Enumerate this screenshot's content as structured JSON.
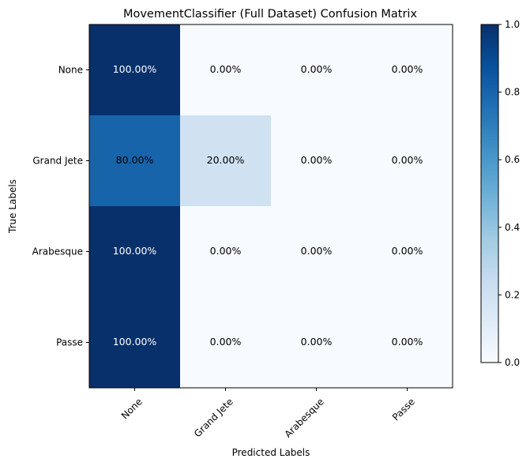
{
  "chart_data": {
    "type": "heatmap",
    "title": "MovementClassifier (Full Dataset) Confusion Matrix",
    "xlabel": "Predicted Labels",
    "ylabel": "True Labels",
    "x_categories": [
      "None",
      "Grand Jete",
      "Arabesque",
      "Passe"
    ],
    "y_categories": [
      "None",
      "Grand Jete",
      "Arabesque",
      "Passe"
    ],
    "values": [
      [
        1.0,
        0.0,
        0.0,
        0.0
      ],
      [
        0.8,
        0.2,
        0.0,
        0.0
      ],
      [
        1.0,
        0.0,
        0.0,
        0.0
      ],
      [
        1.0,
        0.0,
        0.0,
        0.0
      ]
    ],
    "cell_labels": [
      [
        "100.00%",
        "0.00%",
        "0.00%",
        "0.00%"
      ],
      [
        "80.00%",
        "20.00%",
        "0.00%",
        "0.00%"
      ],
      [
        "100.00%",
        "0.00%",
        "0.00%",
        "0.00%"
      ],
      [
        "100.00%",
        "0.00%",
        "0.00%",
        "0.00%"
      ]
    ],
    "colormap": "Blues",
    "colorbar": {
      "range": [
        0.0,
        1.0
      ],
      "ticks": [
        0.0,
        0.2,
        0.4,
        0.6,
        0.8,
        1.0
      ],
      "tick_labels": [
        "0.0",
        "0.2",
        "0.4",
        "0.6",
        "0.8",
        "1.0"
      ]
    },
    "x_tick_rotation": "45 degrees",
    "grid": false
  }
}
